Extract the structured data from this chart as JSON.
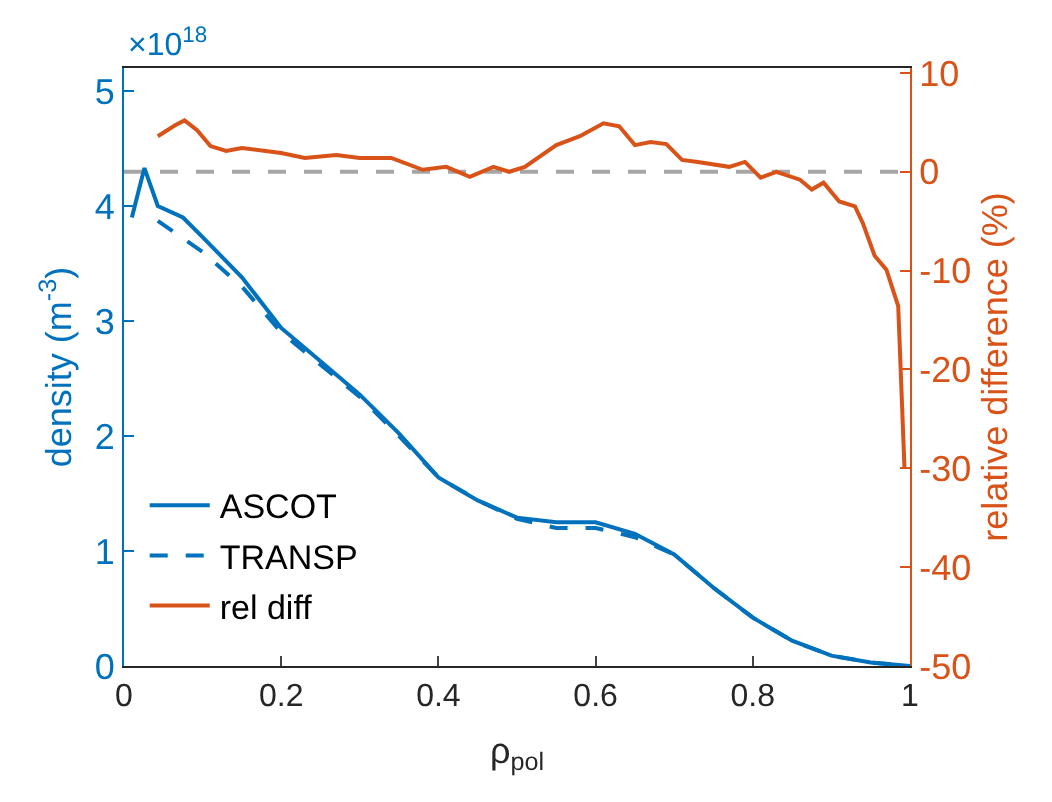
{
  "chart_data": {
    "type": "line",
    "xlabel": "ρ$_{pol}$",
    "ylabel": "density (m$^{-3}$)",
    "y2label": "relative difference (%)",
    "annotations": [
      "×10$^{18}$"
    ],
    "xlim": [
      0,
      1
    ],
    "xticks": [
      0,
      0.2,
      0.4,
      0.6,
      0.8,
      1
    ],
    "ylim": [
      0,
      5.2
    ],
    "yticks": [
      0,
      1,
      2,
      3,
      4,
      5
    ],
    "y2lim": [
      -50,
      10.5
    ],
    "y2ticks": [
      -50,
      -40,
      -30,
      -20,
      -10,
      0,
      10
    ],
    "grid": false,
    "legend": "bottom left",
    "marker": "none",
    "ref_lines": [
      {
        "axis": "y2",
        "value": 0,
        "color": "#a6a6a6",
        "line_style": "dashed"
      }
    ],
    "series": [
      {
        "name": "ASCOT",
        "color": "#0072bd",
        "line_style": "solid",
        "x": [
          0.01,
          0.026,
          0.043,
          0.075,
          0.1,
          0.15,
          0.2,
          0.25,
          0.3,
          0.35,
          0.4,
          0.45,
          0.5,
          0.55,
          0.6,
          0.65,
          0.7,
          0.75,
          0.8,
          0.85,
          0.9,
          0.95,
          1
        ],
        "values": [
          3.9,
          4.33,
          4.0,
          3.9,
          3.73,
          3.38,
          2.94,
          2.65,
          2.36,
          2.02,
          1.64,
          1.44,
          1.29,
          1.25,
          1.25,
          1.15,
          0.97,
          0.68,
          0.42,
          0.22,
          0.09,
          0.03,
          0
        ]
      },
      {
        "name": "TRANSP",
        "color": "#0072bd",
        "line_style": "dashed",
        "x": [
          0.043,
          0.1,
          0.15,
          0.2,
          0.25,
          0.3,
          0.35,
          0.4,
          0.45,
          0.5,
          0.55,
          0.6,
          0.65,
          0.7,
          0.75,
          0.8,
          0.85,
          0.9,
          0.95,
          1
        ],
        "values": [
          3.87,
          3.6,
          3.3,
          2.9,
          2.62,
          2.34,
          2.0,
          1.64,
          1.44,
          1.28,
          1.2,
          1.2,
          1.12,
          0.97,
          0.68,
          0.42,
          0.22,
          0.09,
          0.03,
          0
        ]
      },
      {
        "name": "rel diff",
        "color": "#d95319",
        "axis": "y2",
        "line_style": "solid",
        "x": [
          0.043,
          0.065,
          0.077,
          0.093,
          0.11,
          0.13,
          0.15,
          0.2,
          0.23,
          0.27,
          0.3,
          0.34,
          0.38,
          0.41,
          0.44,
          0.47,
          0.49,
          0.51,
          0.55,
          0.58,
          0.61,
          0.63,
          0.65,
          0.67,
          0.69,
          0.71,
          0.73,
          0.77,
          0.79,
          0.81,
          0.83,
          0.86,
          0.875,
          0.89,
          0.91,
          0.93,
          0.94,
          0.955,
          0.97,
          0.985,
          0.993
        ],
        "values": [
          3.6,
          4.7,
          5.2,
          4.2,
          2.6,
          2.1,
          2.4,
          1.9,
          1.4,
          1.7,
          1.4,
          1.4,
          0.2,
          0.5,
          -0.5,
          0.5,
          0,
          0.5,
          2.7,
          3.6,
          4.9,
          4.6,
          2.7,
          3.0,
          2.8,
          1.2,
          1.0,
          0.5,
          1.0,
          -0.6,
          0,
          -0.8,
          -1.8,
          -1.1,
          -3.0,
          -3.5,
          -5.2,
          -8.5,
          -9.9,
          -13.6,
          -30
        ]
      }
    ]
  }
}
